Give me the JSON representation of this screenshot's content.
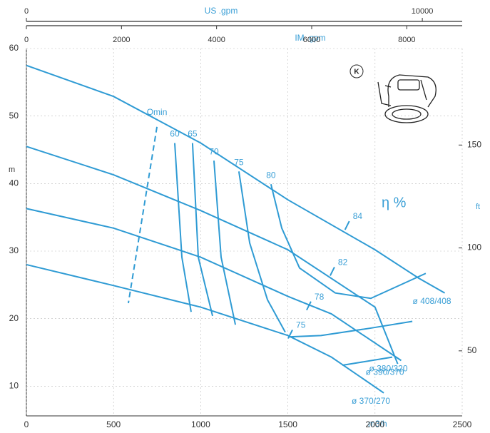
{
  "chart_data": {
    "type": "line",
    "x_label": "m3/h",
    "y_label": "m",
    "y2_label": "ft",
    "xlim": [
      0,
      2500
    ],
    "ylim": [
      5.6,
      60
    ],
    "y2lim": [
      18.4,
      196.9
    ],
    "xticks": [
      0,
      500,
      1000,
      1500,
      2000,
      2500
    ],
    "yticks": [
      10,
      20,
      30,
      40,
      50,
      60
    ],
    "y2ticks": [
      50,
      100,
      150
    ],
    "grid": true,
    "color": "#2f9bd4",
    "top_axes": [
      {
        "label": "US .gpm",
        "xlim": [
          0,
          11007
        ],
        "xticks": [
          0,
          10000
        ]
      },
      {
        "label": "IM .gpm",
        "xlim": [
          0,
          9165
        ],
        "xticks": [
          0,
          2000,
          4000,
          6000,
          8000
        ]
      }
    ],
    "series": [
      {
        "name": "ø 408/408",
        "x": [
          0,
          500,
          1000,
          1500,
          2000,
          2250,
          2400
        ],
        "values": [
          57.5,
          52.9,
          46,
          37.6,
          30.2,
          26,
          23.8
        ]
      },
      {
        "name": "ø 390/370",
        "x": [
          0,
          500,
          1000,
          1500,
          2000,
          2130
        ],
        "values": [
          45.5,
          41.3,
          36,
          30.2,
          21.7,
          13.3
        ]
      },
      {
        "name": "ø 380/320",
        "x": [
          0,
          500,
          1000,
          1500,
          1750,
          2150
        ],
        "values": [
          36.3,
          33.4,
          29.1,
          23.3,
          20.7,
          13.8
        ]
      },
      {
        "name": "ø 370/270",
        "x": [
          0,
          500,
          1000,
          1500,
          1750,
          2050
        ],
        "values": [
          28,
          24.9,
          21.7,
          17.5,
          14.3,
          9
        ]
      }
    ],
    "efficiency_lines": [
      {
        "name": "60",
        "x": [
          851,
          892,
          945
        ],
        "values": [
          46,
          29.1,
          21
        ]
      },
      {
        "name": "65",
        "x": [
          953,
          986,
          1068
        ],
        "values": [
          46,
          29.1,
          20.4
        ]
      },
      {
        "name": "70",
        "x": [
          1076,
          1117,
          1199
        ],
        "values": [
          43.4,
          29.1,
          19.1
        ]
      },
      {
        "name": "75",
        "x": [
          1219,
          1281,
          1383,
          1485
        ],
        "values": [
          41.8,
          31.2,
          22.8,
          18
        ]
      },
      {
        "name": "80",
        "x": [
          1403,
          1465,
          1567,
          1772,
          1976,
          2291
        ],
        "values": [
          39.9,
          33.4,
          27.5,
          23.8,
          23,
          26.7
        ]
      }
    ],
    "contours": [
      {
        "x": [
          1506,
          1690,
          1976,
          2214
        ],
        "values": [
          17.3,
          17.5,
          18.6,
          19.6
        ]
      },
      {
        "x": [
          1813,
          2099
        ],
        "values": [
          13.1,
          14.3
        ]
      }
    ],
    "qmin": {
      "name": "Qmin",
      "x": [
        749,
        585
      ],
      "values": [
        48.4,
        22.3
      ]
    },
    "annotations": [
      {
        "text": "84",
        "x": 1840,
        "y": 33.8
      },
      {
        "text": "82",
        "x": 1755,
        "y": 27
      },
      {
        "text": "78",
        "x": 1620,
        "y": 21.9
      },
      {
        "text": "75",
        "x": 1514,
        "y": 17.7
      }
    ],
    "efficiency_label": "η %",
    "model_label": "K"
  }
}
